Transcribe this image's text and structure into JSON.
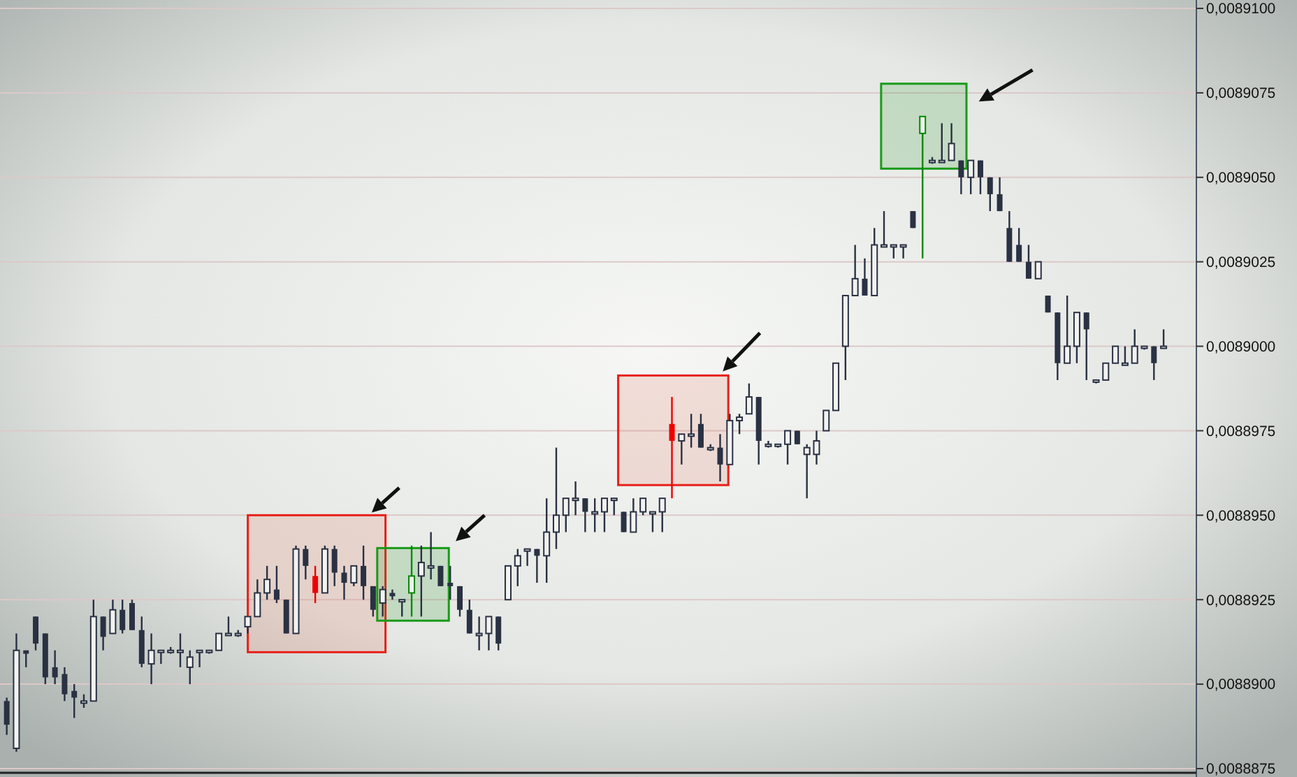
{
  "chart_data": {
    "type": "candlestick",
    "categories": [
      null,
      null,
      null,
      null,
      null,
      null,
      null,
      null,
      null,
      null,
      null,
      null,
      null,
      null,
      null,
      null,
      null,
      null,
      null,
      null,
      null,
      null,
      null,
      null,
      null,
      null,
      null,
      null,
      null,
      null,
      null,
      null,
      null,
      null,
      null,
      null,
      null,
      null,
      null,
      null,
      null,
      null,
      null,
      null,
      null,
      null,
      null,
      null,
      null,
      null,
      null,
      null,
      null,
      null,
      null,
      null,
      null,
      null,
      null,
      null,
      null,
      null,
      null,
      null,
      null,
      null,
      null,
      null,
      null,
      null,
      null,
      null,
      null,
      null,
      null,
      null,
      null,
      null,
      null,
      null,
      null,
      null,
      null,
      null,
      null,
      null,
      null,
      null,
      null,
      null,
      null,
      null,
      null,
      null,
      null,
      null,
      null,
      null,
      null,
      null,
      null,
      null,
      null,
      null,
      null,
      null,
      null,
      null,
      null,
      null,
      null,
      null,
      null,
      null,
      null,
      null,
      null,
      null,
      null,
      null,
      null
    ],
    "ohlc": [
      [
        0.0088895,
        0.0088896,
        0.0088885,
        0.0088888
      ],
      [
        0.0088881,
        0.0088915,
        0.008888,
        0.008891
      ],
      [
        0.008891,
        0.008891,
        0.0088905,
        0.0088909
      ],
      [
        0.008892,
        0.008892,
        0.008891,
        0.0088912
      ],
      [
        0.0088915,
        0.0088915,
        0.00889,
        0.0088902
      ],
      [
        0.0088905,
        0.008891,
        0.00889,
        0.0088902
      ],
      [
        0.0088903,
        0.0088905,
        0.0088895,
        0.0088897
      ],
      [
        0.0088898,
        0.00889,
        0.008889,
        0.0088896
      ],
      [
        0.0088895,
        0.0088897,
        0.0088893,
        0.0088895
      ],
      [
        0.0088895,
        0.0088925,
        0.0088895,
        0.008892
      ],
      [
        0.008892,
        0.008892,
        0.008891,
        0.0088914
      ],
      [
        0.0088915,
        0.0088925,
        0.0088915,
        0.0088922
      ],
      [
        0.0088922,
        0.0088925,
        0.0088915,
        0.0088916
      ],
      [
        0.0088924,
        0.0088925,
        0.0088916,
        0.0088916
      ],
      [
        0.0088916,
        0.008892,
        0.0088905,
        0.0088906
      ],
      [
        0.0088906,
        0.0088915,
        0.00889,
        0.008891
      ],
      [
        0.008891,
        0.008891,
        0.0088906,
        0.008891
      ],
      [
        0.008891,
        0.0088911,
        0.0088909,
        0.008891
      ],
      [
        0.008891,
        0.0088915,
        0.0088905,
        0.008891
      ],
      [
        0.0088905,
        0.008891,
        0.00889,
        0.0088908
      ],
      [
        0.008891,
        0.008891,
        0.0088905,
        0.008891
      ],
      [
        0.008891,
        0.008891,
        0.0088909,
        0.008891
      ],
      [
        0.008891,
        0.0088915,
        0.008891,
        0.0088915
      ],
      [
        0.0088915,
        0.008892,
        0.0088915,
        0.0088915
      ],
      [
        0.0088915,
        0.0088916,
        0.0088914,
        0.0088915
      ],
      [
        0.0088917,
        0.008892,
        0.0088915,
        0.008892
      ],
      [
        0.008892,
        0.0088931,
        0.008892,
        0.0088927
      ],
      [
        0.0088927,
        0.0088935,
        0.0088925,
        0.0088931
      ],
      [
        0.0088928,
        0.0088935,
        0.0088924,
        0.0088925
      ],
      [
        0.0088925,
        0.0088925,
        0.0088915,
        0.0088915
      ],
      [
        0.0088915,
        0.0088941,
        0.0088915,
        0.008894
      ],
      [
        0.008894,
        0.0088941,
        0.0088931,
        0.0088935
      ],
      [
        0.0088932,
        0.0088935,
        0.0088924,
        0.0088927
      ],
      [
        0.0088927,
        0.0088941,
        0.0088927,
        0.008894
      ],
      [
        0.008894,
        0.0088941,
        0.0088929,
        0.0088933
      ],
      [
        0.0088933,
        0.0088935,
        0.0088925,
        0.008893
      ],
      [
        0.008893,
        0.0088935,
        0.0088929,
        0.0088935
      ],
      [
        0.0088935,
        0.0088941,
        0.0088925,
        0.0088929
      ],
      [
        0.0088929,
        0.0088929,
        0.008892,
        0.0088922
      ],
      [
        0.0088924,
        0.0088929,
        0.008892,
        0.0088928
      ],
      [
        0.0088927,
        0.0088928,
        0.0088925,
        0.0088926
      ],
      [
        0.0088925,
        0.0088925,
        0.008892,
        0.0088925
      ],
      [
        0.0088927,
        0.0088941,
        0.008892,
        0.0088932
      ],
      [
        0.0088932,
        0.0088941,
        0.008892,
        0.0088936
      ],
      [
        0.0088935,
        0.0088945,
        0.0088931,
        0.0088935
      ],
      [
        0.0088935,
        0.0088935,
        0.0088929,
        0.0088929
      ],
      [
        0.008893,
        0.0088935,
        0.0088925,
        0.0088929
      ],
      [
        0.0088929,
        0.0088929,
        0.008892,
        0.0088922
      ],
      [
        0.0088922,
        0.0088925,
        0.0088915,
        0.0088915
      ],
      [
        0.0088915,
        0.008892,
        0.008891,
        0.0088915
      ],
      [
        0.0088915,
        0.008892,
        0.008891,
        0.008892
      ],
      [
        0.008892,
        0.008892,
        0.008891,
        0.0088912
      ],
      [
        0.0088925,
        0.0088935,
        0.0088925,
        0.0088935
      ],
      [
        0.0088935,
        0.008894,
        0.0088929,
        0.0088938
      ],
      [
        0.008894,
        0.008894,
        0.0088935,
        0.008894
      ],
      [
        0.008894,
        0.008894,
        0.008893,
        0.0088938
      ],
      [
        0.0088938,
        0.0088955,
        0.008893,
        0.0088945
      ],
      [
        0.0088945,
        0.008897,
        0.008894,
        0.008895
      ],
      [
        0.008895,
        0.0088955,
        0.0088945,
        0.0088955
      ],
      [
        0.0088955,
        0.008896,
        0.008895,
        0.0088955
      ],
      [
        0.0088955,
        0.0088955,
        0.0088945,
        0.0088951
      ],
      [
        0.0088951,
        0.0088955,
        0.0088945,
        0.0088951
      ],
      [
        0.0088951,
        0.0088955,
        0.0088945,
        0.0088955
      ],
      [
        0.0088955,
        0.0088955,
        0.008895,
        0.0088955
      ],
      [
        0.0088951,
        0.0088951,
        0.0088945,
        0.0088945
      ],
      [
        0.0088945,
        0.0088955,
        0.0088945,
        0.0088951
      ],
      [
        0.0088951,
        0.0088955,
        0.008895,
        0.0088955
      ],
      [
        0.0088951,
        0.0088951,
        0.0088945,
        0.0088951
      ],
      [
        0.0088951,
        0.0088955,
        0.0088945,
        0.0088955
      ],
      [
        0.0088977,
        0.0088985,
        0.0088955,
        0.0088972
      ],
      [
        0.0088972,
        0.0088974,
        0.0088965,
        0.0088974
      ],
      [
        0.0088974,
        0.008898,
        0.008897,
        0.0088974
      ],
      [
        0.0088977,
        0.008898,
        0.008897,
        0.008897
      ],
      [
        0.008897,
        0.0088971,
        0.0088969,
        0.008897
      ],
      [
        0.008897,
        0.0088974,
        0.008896,
        0.0088965
      ],
      [
        0.0088965,
        0.008898,
        0.0088965,
        0.0088978
      ],
      [
        0.0088978,
        0.008898,
        0.0088974,
        0.0088979
      ],
      [
        0.008898,
        0.0088989,
        0.008898,
        0.0088985
      ],
      [
        0.0088985,
        0.0088985,
        0.0088965,
        0.0088972
      ],
      [
        0.0088971,
        0.0088972,
        0.008897,
        0.0088971
      ],
      [
        0.0088971,
        0.0088971,
        0.008897,
        0.0088971
      ],
      [
        0.0088971,
        0.0088975,
        0.0088965,
        0.0088975
      ],
      [
        0.0088975,
        0.0088975,
        0.0088971,
        0.0088971
      ],
      [
        0.0088968,
        0.0088971,
        0.0088955,
        0.008897
      ],
      [
        0.0088968,
        0.0088975,
        0.0088965,
        0.0088972
      ],
      [
        0.0088975,
        0.0088981,
        0.0088975,
        0.0088981
      ],
      [
        0.0088981,
        0.0088995,
        0.0088981,
        0.0088995
      ],
      [
        0.0089,
        0.0089015,
        0.008899,
        0.0089015
      ],
      [
        0.0089015,
        0.008903,
        0.0089015,
        0.008902
      ],
      [
        0.008902,
        0.0089026,
        0.0089015,
        0.0089015
      ],
      [
        0.0089015,
        0.0089035,
        0.0089015,
        0.008903
      ],
      [
        0.008903,
        0.008904,
        0.008903,
        0.008903
      ],
      [
        0.008903,
        0.008903,
        0.0089026,
        0.008903
      ],
      [
        0.008903,
        0.008903,
        0.0089026,
        0.008903
      ],
      [
        0.008904,
        0.008904,
        0.0089035,
        0.0089035
      ],
      [
        0.0089063,
        0.0089068,
        0.0089026,
        0.0089068
      ],
      [
        0.0089055,
        0.0089056,
        0.0089054,
        0.0089055
      ],
      [
        0.0089055,
        0.0089066,
        0.0089055,
        0.0089055
      ],
      [
        0.0089055,
        0.0089066,
        0.0089055,
        0.008906
      ],
      [
        0.0089055,
        0.0089055,
        0.0089045,
        0.008905
      ],
      [
        0.008905,
        0.0089055,
        0.0089045,
        0.0089055
      ],
      [
        0.0089055,
        0.0089055,
        0.0089045,
        0.008905
      ],
      [
        0.008905,
        0.008905,
        0.008904,
        0.0089045
      ],
      [
        0.0089045,
        0.008905,
        0.008904,
        0.008904
      ],
      [
        0.0089035,
        0.008904,
        0.0089025,
        0.0089025
      ],
      [
        0.008903,
        0.0089035,
        0.0089025,
        0.0089025
      ],
      [
        0.0089025,
        0.008903,
        0.008902,
        0.008902
      ],
      [
        0.008902,
        0.0089025,
        0.008902,
        0.0089025
      ],
      [
        0.0089015,
        0.0089015,
        0.008901,
        0.008901
      ],
      [
        0.008901,
        0.008901,
        0.008899,
        0.0088995
      ],
      [
        0.0088995,
        0.0089015,
        0.0088995,
        0.0089
      ],
      [
        0.0089,
        0.008901,
        0.0088995,
        0.008901
      ],
      [
        0.008901,
        0.008901,
        0.008899,
        0.0089005
      ],
      [
        0.008899,
        0.008899,
        0.0088989,
        0.008899
      ],
      [
        0.008899,
        0.0088995,
        0.008899,
        0.0088995
      ],
      [
        0.0088995,
        0.0089,
        0.0088995,
        0.0089
      ],
      [
        0.0088995,
        0.0089,
        0.0088995,
        0.0088995
      ],
      [
        0.0088995,
        0.0089005,
        0.0088995,
        0.0089
      ],
      [
        0.0089,
        0.0089,
        0.0088999,
        0.0089
      ],
      [
        0.0089,
        0.0089,
        0.008899,
        0.0088995
      ],
      [
        0.0089,
        0.0089005,
        0.0089,
        0.0089
      ]
    ],
    "colors": [
      "#2a3142",
      "#2a3142",
      "#2a3142",
      "#2a3142",
      "#2a3142",
      "#2a3142",
      "#2a3142",
      "#2a3142",
      "#2a3142",
      "#2a3142",
      "#2a3142",
      "#2a3142",
      "#2a3142",
      "#2a3142",
      "#2a3142",
      "#2a3142",
      "#2a3142",
      "#2a3142",
      "#2a3142",
      "#2a3142",
      "#2a3142",
      "#2a3142",
      "#2a3142",
      "#2a3142",
      "#2a3142",
      "#2a3142",
      "#2a3142",
      "#2a3142",
      "#2a3142",
      "#2a3142",
      "#2a3142",
      "#2a3142",
      "#ee0000",
      "#2a3142",
      "#2a3142",
      "#2a3142",
      "#2a3142",
      "#2a3142",
      "#2a3142",
      "#2a3142",
      "#2a3142",
      "#2a3142",
      "#008a00",
      "#2a3142",
      "#2a3142",
      "#2a3142",
      "#2a3142",
      "#2a3142",
      "#2a3142",
      "#2a3142",
      "#2a3142",
      "#2a3142",
      "#2a3142",
      "#2a3142",
      "#2a3142",
      "#2a3142",
      "#2a3142",
      "#2a3142",
      "#2a3142",
      "#2a3142",
      "#2a3142",
      "#2a3142",
      "#2a3142",
      "#2a3142",
      "#2a3142",
      "#2a3142",
      "#2a3142",
      "#2a3142",
      "#2a3142",
      "#ee0000",
      "#2a3142",
      "#2a3142",
      "#2a3142",
      "#2a3142",
      "#2a3142",
      "#2a3142",
      "#2a3142",
      "#2a3142",
      "#2a3142",
      "#2a3142",
      "#2a3142",
      "#2a3142",
      "#2a3142",
      "#2a3142",
      "#2a3142",
      "#2a3142",
      "#2a3142",
      "#2a3142",
      "#2a3142",
      "#2a3142",
      "#2a3142",
      "#2a3142",
      "#2a3142",
      "#2a3142",
      "#2a3142",
      "#008a00",
      "#2a3142",
      "#2a3142",
      "#2a3142",
      "#2a3142",
      "#2a3142",
      "#2a3142",
      "#2a3142",
      "#2a3142",
      "#2a3142",
      "#2a3142",
      "#2a3142",
      "#2a3142",
      "#2a3142",
      "#2a3142",
      "#2a3142",
      "#2a3142",
      "#2a3142",
      "#2a3142",
      "#2a3142",
      "#2a3142",
      "#2a3142",
      "#2a3142",
      "#2a3142",
      "#2a3142",
      "#2a3142"
    ],
    "ylim": [
      0.0088875,
      0.00891
    ],
    "yticks": [
      {
        "value": 0.0088875,
        "label": "0,0088875"
      },
      {
        "value": 0.00889,
        "label": "0,0088900"
      },
      {
        "value": 0.0088925,
        "label": "0,0088925"
      },
      {
        "value": 0.008895,
        "label": "0,0088950"
      },
      {
        "value": 0.0088975,
        "label": "0,0088975"
      },
      {
        "value": 0.0089,
        "label": "0,0089000"
      },
      {
        "value": 0.0089025,
        "label": "0,0089025"
      },
      {
        "value": 0.008905,
        "label": "0,0089050"
      },
      {
        "value": 0.0089075,
        "label": "0,0089075"
      },
      {
        "value": 0.00891,
        "label": "0,0089100"
      }
    ],
    "grid": "y",
    "tick_labels": "y"
  }
}
